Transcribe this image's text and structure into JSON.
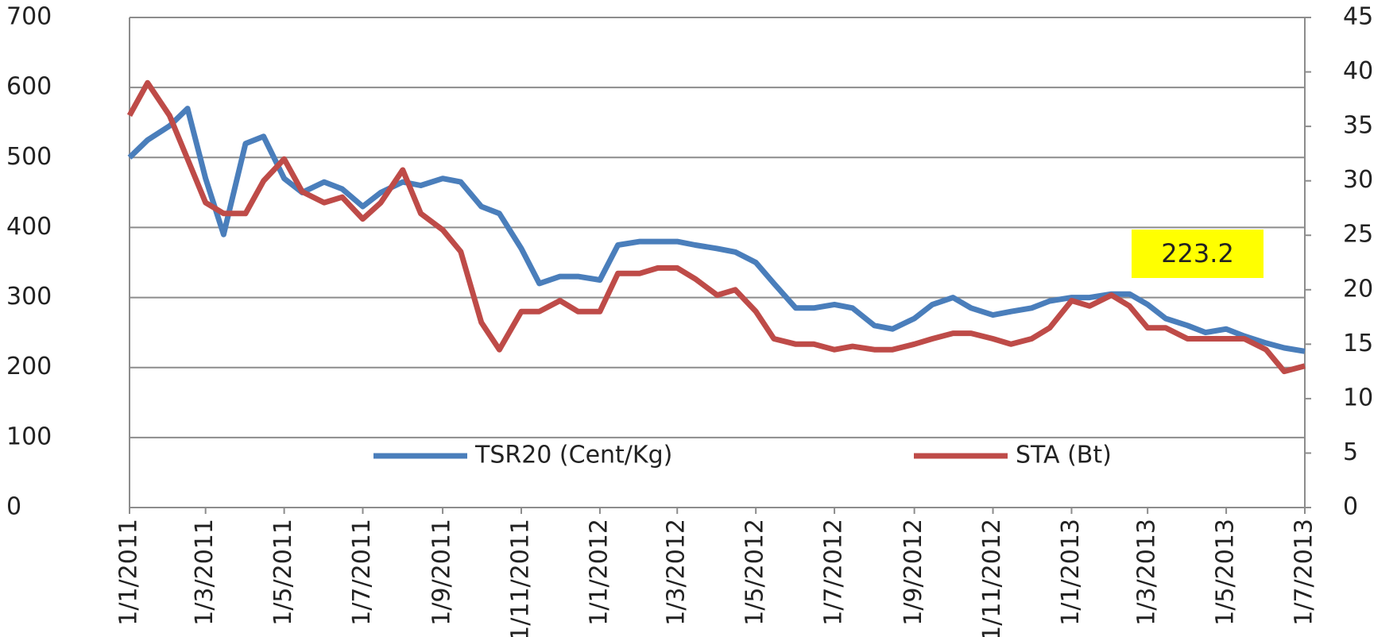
{
  "chart_data": {
    "type": "line",
    "annotation": "223.2",
    "x": [
      "1/1/2011",
      "15/1/2011",
      "1/2/2011",
      "15/2/2011",
      "1/3/2011",
      "15/3/2011",
      "1/4/2011",
      "15/4/2011",
      "1/5/2011",
      "15/5/2011",
      "1/6/2011",
      "15/6/2011",
      "1/7/2011",
      "15/7/2011",
      "1/8/2011",
      "15/8/2011",
      "1/9/2011",
      "15/9/2011",
      "1/10/2011",
      "15/10/2011",
      "1/11/2011",
      "15/11/2011",
      "1/12/2011",
      "15/12/2011",
      "1/1/2012",
      "15/1/2012",
      "1/2/2012",
      "15/2/2012",
      "1/3/2012",
      "15/3/2012",
      "1/4/2012",
      "15/4/2012",
      "1/5/2012",
      "15/5/2012",
      "1/6/2012",
      "15/6/2012",
      "1/7/2012",
      "15/7/2012",
      "1/8/2012",
      "15/8/2012",
      "1/9/2012",
      "15/9/2012",
      "1/10/2012",
      "15/10/2012",
      "1/11/2012",
      "15/11/2012",
      "1/12/2012",
      "15/12/2012",
      "1/1/2013",
      "15/1/2013",
      "1/2/2013",
      "15/2/2013",
      "1/3/2013",
      "15/3/2013",
      "1/4/2013",
      "15/4/2013",
      "1/5/2013",
      "15/5/2013",
      "1/6/2013",
      "15/6/2013",
      "1/7/2013"
    ],
    "series": [
      {
        "name": "TSR20 (Cent/Kg)",
        "color": "#4a7ebb",
        "axis": "y",
        "values": [
          500,
          525,
          545,
          570,
          470,
          390,
          520,
          530,
          470,
          450,
          465,
          455,
          430,
          450,
          465,
          460,
          470,
          465,
          430,
          420,
          370,
          320,
          330,
          330,
          325,
          375,
          380,
          380,
          380,
          375,
          370,
          365,
          350,
          320,
          285,
          285,
          290,
          285,
          260,
          255,
          270,
          290,
          300,
          285,
          275,
          280,
          285,
          295,
          300,
          300,
          305,
          305,
          290,
          270,
          260,
          250,
          255,
          245,
          235,
          228,
          223.2
        ]
      },
      {
        "name": "STA (Bt)",
        "color": "#be4b48",
        "axis": "y2",
        "values": [
          36,
          39,
          36,
          32,
          28,
          27,
          27,
          30,
          32,
          29,
          28,
          28.5,
          26.5,
          28,
          31,
          27,
          25.5,
          23.5,
          17,
          14.5,
          18,
          18,
          19,
          18,
          18,
          21.5,
          21.5,
          22,
          22,
          21,
          19.5,
          20,
          18,
          15.5,
          15,
          15,
          14.5,
          14.8,
          14.5,
          14.5,
          15,
          15.5,
          16,
          16,
          15.5,
          15,
          15.5,
          16.5,
          19,
          18.5,
          19.5,
          18.5,
          16.5,
          16.5,
          15.5,
          15.5,
          15.5,
          15.5,
          14.5,
          12.5,
          13
        ]
      }
    ],
    "xlim": [
      "1/1/2011",
      "1/7/2013"
    ],
    "xticks": [
      "1/1/2011",
      "1/3/2011",
      "1/5/2011",
      "1/7/2011",
      "1/9/2011",
      "1/11/2011",
      "1/1/2012",
      "1/3/2012",
      "1/5/2012",
      "1/7/2012",
      "1/9/2012",
      "1/11/2012",
      "1/1/2013",
      "1/3/2013",
      "1/5/2013",
      "1/7/2013"
    ],
    "ylim": [
      0,
      700
    ],
    "yticks": [
      0,
      100,
      200,
      300,
      400,
      500,
      600,
      700
    ],
    "y2lim": [
      0,
      45
    ],
    "y2ticks": [
      0,
      5,
      10,
      15,
      20,
      25,
      30,
      35,
      40,
      45
    ],
    "grid": true
  }
}
